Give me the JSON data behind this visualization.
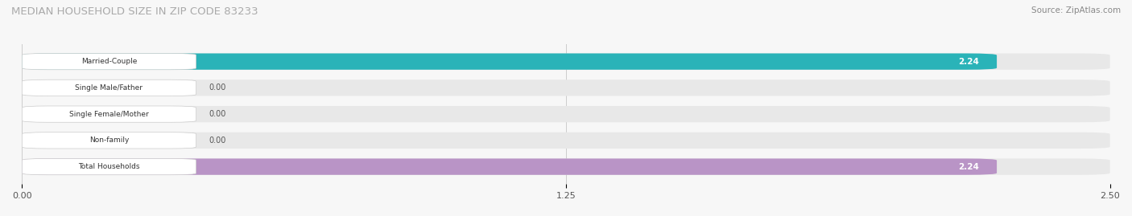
{
  "title": "MEDIAN HOUSEHOLD SIZE IN ZIP CODE 83233",
  "source": "Source: ZipAtlas.com",
  "categories": [
    "Married-Couple",
    "Single Male/Father",
    "Single Female/Mother",
    "Non-family",
    "Total Households"
  ],
  "values": [
    2.24,
    0.0,
    0.0,
    0.0,
    2.24
  ],
  "bar_colors": [
    "#2ab3b8",
    "#a8c4e0",
    "#f4a0b0",
    "#f5c895",
    "#b994c6"
  ],
  "bar_bg_color": "#e8e8e8",
  "xlim": [
    0,
    2.5
  ],
  "xticks": [
    0.0,
    1.25,
    2.5
  ],
  "value_label_color": "#ffffff",
  "zero_label_color": "#555555",
  "title_color": "#aaaaaa",
  "source_color": "#888888",
  "grid_color": "#cccccc",
  "background_color": "#f7f7f7"
}
